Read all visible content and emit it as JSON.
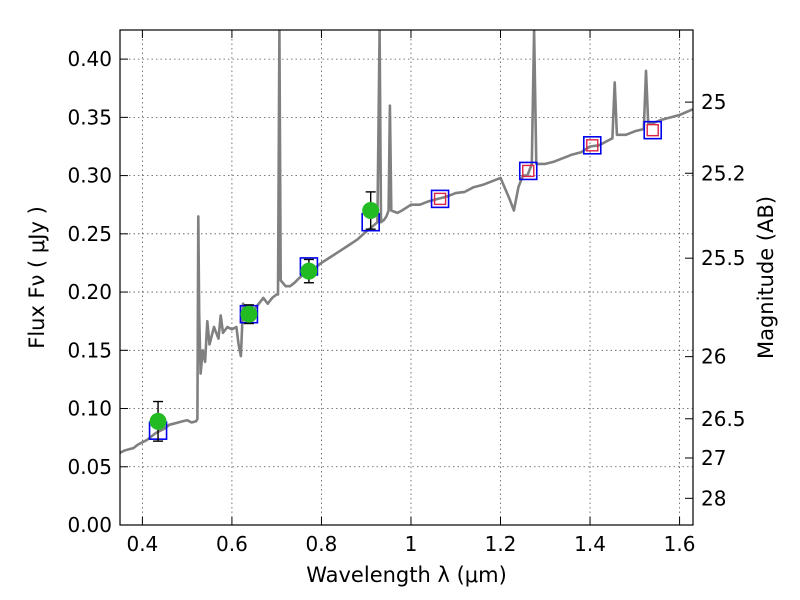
{
  "chart_data": {
    "type": "line",
    "xlabel": "Wavelength  λ (μm)",
    "ylabel": "Flux  Fν  ( μJy )",
    "y2label": "Magnitude (AB)",
    "xlim": [
      0.35,
      1.63
    ],
    "ylim": [
      0.0,
      0.425
    ],
    "grid": true,
    "xticks": [
      {
        "value": 0.4,
        "label": "0.4"
      },
      {
        "value": 0.6,
        "label": "0.6"
      },
      {
        "value": 0.8,
        "label": "0.8"
      },
      {
        "value": 1.0,
        "label": "1"
      },
      {
        "value": 1.2,
        "label": "1.2"
      },
      {
        "value": 1.4,
        "label": "1.4"
      },
      {
        "value": 1.6,
        "label": "1.6"
      }
    ],
    "yticks": [
      {
        "value": 0.0,
        "label": "0.00"
      },
      {
        "value": 0.05,
        "label": "0.05"
      },
      {
        "value": 0.1,
        "label": "0.10"
      },
      {
        "value": 0.15,
        "label": "0.15"
      },
      {
        "value": 0.2,
        "label": "0.20"
      },
      {
        "value": 0.25,
        "label": "0.25"
      },
      {
        "value": 0.3,
        "label": "0.30"
      },
      {
        "value": 0.35,
        "label": "0.35"
      },
      {
        "value": 0.4,
        "label": "0.40"
      }
    ],
    "mag_ticks": [
      {
        "mag": 25,
        "label": "25"
      },
      {
        "mag": 25.2,
        "label": "25.2"
      },
      {
        "mag": 25.5,
        "label": "25.5"
      },
      {
        "mag": 26,
        "label": "26"
      },
      {
        "mag": 26.5,
        "label": "26.5"
      },
      {
        "mag": 27,
        "label": "27"
      },
      {
        "mag": 28,
        "label": "28"
      }
    ],
    "colors": {
      "spectrum": "#808080",
      "observed": "#22bb22",
      "model_box": "#0000ee",
      "model_box_red": "#dd2244",
      "errorbar": "#000000",
      "grid": "#555555"
    },
    "spectrum": [
      [
        0.35,
        0.062
      ],
      [
        0.36,
        0.064
      ],
      [
        0.37,
        0.065
      ],
      [
        0.38,
        0.066
      ],
      [
        0.39,
        0.069
      ],
      [
        0.4,
        0.071
      ],
      [
        0.41,
        0.073
      ],
      [
        0.42,
        0.076
      ],
      [
        0.43,
        0.079
      ],
      [
        0.44,
        0.081
      ],
      [
        0.45,
        0.083
      ],
      [
        0.46,
        0.086
      ],
      [
        0.47,
        0.087
      ],
      [
        0.48,
        0.088
      ],
      [
        0.49,
        0.089
      ],
      [
        0.5,
        0.09
      ],
      [
        0.51,
        0.088
      ],
      [
        0.52,
        0.089
      ],
      [
        0.523,
        0.091
      ],
      [
        0.525,
        0.265
      ],
      [
        0.527,
        0.18
      ],
      [
        0.53,
        0.13
      ],
      [
        0.535,
        0.15
      ],
      [
        0.54,
        0.14
      ],
      [
        0.545,
        0.175
      ],
      [
        0.55,
        0.155
      ],
      [
        0.56,
        0.17
      ],
      [
        0.57,
        0.16
      ],
      [
        0.575,
        0.18
      ],
      [
        0.58,
        0.165
      ],
      [
        0.59,
        0.17
      ],
      [
        0.6,
        0.168
      ],
      [
        0.61,
        0.17
      ],
      [
        0.615,
        0.155
      ],
      [
        0.62,
        0.145
      ],
      [
        0.625,
        0.19
      ],
      [
        0.63,
        0.185
      ],
      [
        0.64,
        0.18
      ],
      [
        0.65,
        0.185
      ],
      [
        0.66,
        0.19
      ],
      [
        0.67,
        0.195
      ],
      [
        0.68,
        0.19
      ],
      [
        0.69,
        0.195
      ],
      [
        0.7,
        0.198
      ],
      [
        0.703,
        0.198
      ],
      [
        0.706,
        0.425
      ],
      [
        0.709,
        0.21
      ],
      [
        0.72,
        0.205
      ],
      [
        0.73,
        0.205
      ],
      [
        0.74,
        0.208
      ],
      [
        0.75,
        0.212
      ],
      [
        0.76,
        0.215
      ],
      [
        0.77,
        0.217
      ],
      [
        0.78,
        0.219
      ],
      [
        0.79,
        0.222
      ],
      [
        0.8,
        0.225
      ],
      [
        0.82,
        0.23
      ],
      [
        0.84,
        0.235
      ],
      [
        0.86,
        0.24
      ],
      [
        0.88,
        0.245
      ],
      [
        0.9,
        0.252
      ],
      [
        0.91,
        0.255
      ],
      [
        0.925,
        0.26
      ],
      [
        0.93,
        0.425
      ],
      [
        0.933,
        0.26
      ],
      [
        0.94,
        0.262
      ],
      [
        0.945,
        0.265
      ],
      [
        0.95,
        0.27
      ],
      [
        0.953,
        0.36
      ],
      [
        0.956,
        0.27
      ],
      [
        0.97,
        0.268
      ],
      [
        0.98,
        0.27
      ],
      [
        1.0,
        0.275
      ],
      [
        1.02,
        0.275
      ],
      [
        1.04,
        0.278
      ],
      [
        1.06,
        0.28
      ],
      [
        1.08,
        0.282
      ],
      [
        1.1,
        0.285
      ],
      [
        1.12,
        0.286
      ],
      [
        1.14,
        0.29
      ],
      [
        1.16,
        0.292
      ],
      [
        1.18,
        0.295
      ],
      [
        1.2,
        0.298
      ],
      [
        1.22,
        0.28
      ],
      [
        1.23,
        0.27
      ],
      [
        1.24,
        0.29
      ],
      [
        1.25,
        0.3
      ],
      [
        1.26,
        0.3
      ],
      [
        1.27,
        0.31
      ],
      [
        1.275,
        0.425
      ],
      [
        1.28,
        0.31
      ],
      [
        1.3,
        0.31
      ],
      [
        1.32,
        0.312
      ],
      [
        1.34,
        0.315
      ],
      [
        1.36,
        0.318
      ],
      [
        1.38,
        0.32
      ],
      [
        1.4,
        0.325
      ],
      [
        1.42,
        0.326
      ],
      [
        1.44,
        0.33
      ],
      [
        1.45,
        0.332
      ],
      [
        1.455,
        0.38
      ],
      [
        1.46,
        0.335
      ],
      [
        1.48,
        0.335
      ],
      [
        1.5,
        0.338
      ],
      [
        1.52,
        0.34
      ],
      [
        1.525,
        0.39
      ],
      [
        1.53,
        0.345
      ],
      [
        1.54,
        0.345
      ],
      [
        1.56,
        0.348
      ],
      [
        1.58,
        0.35
      ],
      [
        1.6,
        0.352
      ],
      [
        1.63,
        0.357
      ]
    ],
    "observed": [
      {
        "x": 0.435,
        "y": 0.089,
        "err": 0.017
      },
      {
        "x": 0.638,
        "y": 0.181,
        "err": 0.008
      },
      {
        "x": 0.772,
        "y": 0.218,
        "err": 0.01
      },
      {
        "x": 0.91,
        "y": 0.27,
        "err": 0.016
      }
    ],
    "model_boxes": [
      {
        "x": 0.435,
        "y": 0.081,
        "red": false
      },
      {
        "x": 0.638,
        "y": 0.181,
        "red": false
      },
      {
        "x": 0.772,
        "y": 0.222,
        "red": false
      },
      {
        "x": 0.91,
        "y": 0.26,
        "red": false
      },
      {
        "x": 1.065,
        "y": 0.28,
        "red": true
      },
      {
        "x": 1.262,
        "y": 0.304,
        "red": true
      },
      {
        "x": 1.405,
        "y": 0.326,
        "red": true
      },
      {
        "x": 1.54,
        "y": 0.339,
        "red": true
      }
    ]
  }
}
